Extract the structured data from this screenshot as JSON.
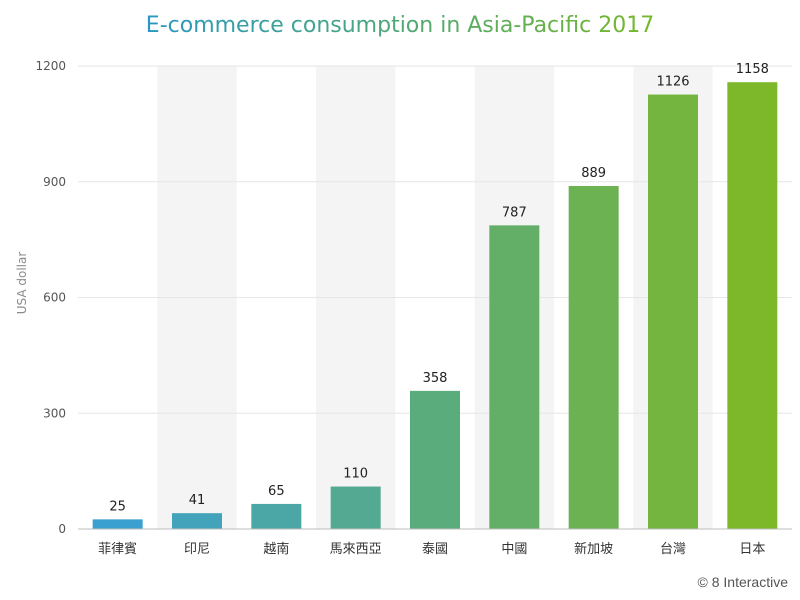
{
  "chart_data": {
    "type": "bar",
    "title": "E-commerce consumption in Asia-Pacific 2017",
    "xlabel": "",
    "ylabel": "USA dollar",
    "ylim": [
      0,
      1200
    ],
    "yticks": [
      0,
      300,
      600,
      900,
      1200
    ],
    "grid": true,
    "categories": [
      "菲律賓",
      "印尼",
      "越南",
      "馬來西亞",
      "泰國",
      "中國",
      "新加坡",
      "台灣",
      "日本"
    ],
    "values": [
      25,
      41,
      65,
      110,
      358,
      787,
      889,
      1126,
      1158
    ],
    "colors": {
      "title_gradient": [
        "#2a98c4",
        "#76b82a"
      ],
      "bar_low": "#3aa0cf",
      "bar_high": "#7cb82a",
      "band": "#f4f4f4",
      "grid": "#e6e6e6"
    }
  },
  "credit": "© 8 Interactive"
}
